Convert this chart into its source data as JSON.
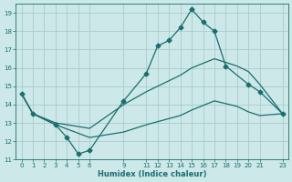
{
  "background_color": "#cce8e8",
  "grid_color": "#aacccc",
  "line_color": "#1a6e6e",
  "xlabel": "Humidex (Indice chaleur)",
  "xlim": [
    -0.5,
    23.5
  ],
  "ylim": [
    11,
    19.5
  ],
  "yticks": [
    11,
    12,
    13,
    14,
    15,
    16,
    17,
    18,
    19
  ],
  "xticks": [
    0,
    1,
    2,
    3,
    4,
    5,
    6,
    9,
    11,
    12,
    13,
    14,
    15,
    16,
    17,
    18,
    19,
    20,
    21,
    23
  ],
  "line_marked_x": [
    0,
    1,
    3,
    4,
    5,
    6,
    9,
    11,
    12,
    13,
    14,
    15,
    16,
    17,
    18,
    20,
    21,
    23
  ],
  "line_marked_y": [
    14.6,
    13.5,
    12.9,
    12.2,
    11.3,
    11.5,
    14.2,
    15.7,
    17.2,
    17.5,
    18.2,
    19.2,
    18.5,
    18.0,
    16.1,
    15.1,
    14.7,
    13.5
  ],
  "line_upper_x": [
    0,
    1,
    3,
    6,
    9,
    11,
    14,
    15,
    17,
    19,
    20,
    21,
    23
  ],
  "line_upper_y": [
    14.6,
    13.5,
    13.0,
    12.7,
    14.0,
    14.7,
    15.6,
    16.0,
    16.5,
    16.1,
    15.8,
    15.1,
    13.5
  ],
  "line_lower_x": [
    0,
    1,
    3,
    6,
    9,
    11,
    14,
    15,
    17,
    19,
    20,
    21,
    23
  ],
  "line_lower_y": [
    14.6,
    13.5,
    12.9,
    12.2,
    12.5,
    12.9,
    13.4,
    13.7,
    14.2,
    13.9,
    13.6,
    13.4,
    13.5
  ]
}
